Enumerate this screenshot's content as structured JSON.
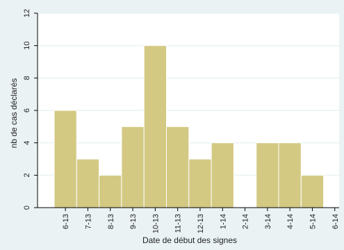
{
  "chart_data": {
    "type": "bar",
    "xlabel": "Date de début des signes",
    "ylabel": "nb de cas déclarés",
    "categories": [
      "6-13",
      "7-13",
      "8-13",
      "9-13",
      "10-13",
      "11-13",
      "12-13",
      "1-14",
      "2-14",
      "3-14",
      "4-14",
      "5-14",
      "6-14"
    ],
    "values": [
      6,
      3,
      2,
      5,
      10,
      5,
      3,
      4,
      0,
      4,
      4,
      2,
      0
    ],
    "ylim": [
      0,
      12
    ],
    "yticks": [
      "0",
      "2",
      "4",
      "6",
      "8",
      "10",
      "12"
    ],
    "grid": "horizontal",
    "legend": "none"
  },
  "colors": {
    "background": "#eaf2f3",
    "plot_area": "#ffffff",
    "bar_fill": "#d4c983",
    "bar_stroke": "#ffffff",
    "grid": "#eaf2f3",
    "axis": "#000000"
  }
}
